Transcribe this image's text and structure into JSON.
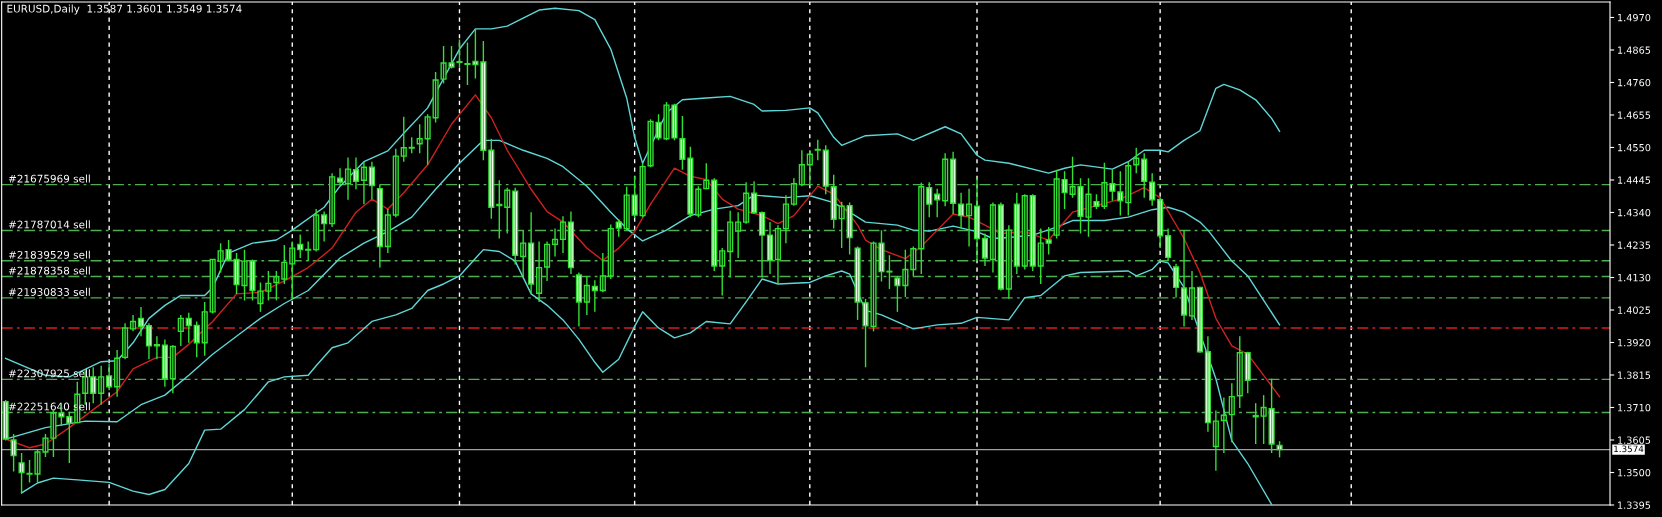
{
  "chart_data": {
    "type": "candlestick",
    "title": "EURUSD,Daily  1.3587 1.3601 1.3549 1.3574",
    "categories": [
      null,
      null,
      null,
      null,
      null,
      null,
      null,
      null,
      null,
      null,
      null,
      null,
      null,
      null,
      null,
      null,
      null,
      null,
      null,
      null,
      null,
      null,
      null,
      null,
      null,
      null,
      null,
      null,
      null,
      null,
      null,
      null,
      null,
      null,
      null,
      null,
      null,
      null,
      null,
      null,
      null,
      null,
      null,
      null,
      null,
      null,
      null,
      null,
      null,
      null,
      null,
      null,
      null,
      null,
      null,
      null,
      null,
      null,
      null,
      null,
      null,
      null,
      null,
      null,
      null,
      null,
      null,
      null,
      null,
      null,
      null,
      null,
      null,
      null,
      null,
      null,
      null,
      null,
      null,
      null,
      null,
      null,
      null,
      null,
      null,
      null,
      null,
      null,
      null,
      null,
      null,
      null,
      null,
      null,
      null,
      null,
      null,
      null,
      null,
      null,
      null,
      null,
      null,
      null,
      null,
      null,
      null,
      null,
      null,
      null,
      null,
      null,
      null,
      null,
      null,
      null,
      null,
      null,
      null,
      null,
      null,
      null,
      null,
      null,
      null,
      null,
      null,
      null,
      null,
      null,
      null,
      null,
      null,
      null,
      null,
      null,
      null,
      null,
      null,
      null,
      null,
      null,
      null,
      null,
      null,
      null,
      null,
      null,
      null,
      null,
      null,
      null,
      null,
      null,
      null,
      null,
      null,
      null,
      null,
      null,
      null,
      null,
      null,
      null,
      null,
      null,
      null,
      null,
      null,
      null,
      null,
      null,
      null,
      null,
      null,
      null,
      null,
      null,
      null,
      null,
      null,
      null,
      null,
      null,
      null,
      null,
      null,
      null,
      null,
      null,
      null,
      null,
      null,
      null,
      null,
      null,
      null,
      null,
      null,
      null,
      null,
      null
    ],
    "ylim": [
      1.3395,
      1.502
    ],
    "yticks": [
      {
        "value": 1.497,
        "label": "1.4970"
      },
      {
        "value": 1.4865,
        "label": "1.4865"
      },
      {
        "value": 1.476,
        "label": "1.4760"
      },
      {
        "value": 1.4655,
        "label": "1.4655"
      },
      {
        "value": 1.455,
        "label": "1.4550"
      },
      {
        "value": 1.4445,
        "label": "1.4445"
      },
      {
        "value": 1.434,
        "label": "1.4340"
      },
      {
        "value": 1.4235,
        "label": "1.4235"
      },
      {
        "value": 1.413,
        "label": "1.4130"
      },
      {
        "value": 1.4025,
        "label": "1.4025"
      },
      {
        "value": 1.392,
        "label": "1.3920"
      },
      {
        "value": 1.3815,
        "label": "1.3815"
      },
      {
        "value": 1.371,
        "label": "1.3710"
      },
      {
        "value": 1.3605,
        "label": "1.3605"
      },
      {
        "value": 1.35,
        "label": "1.3500"
      },
      {
        "value": 1.3395,
        "label": "1.3395"
      }
    ],
    "tick_labels": "y",
    "legend": false,
    "series": [
      {
        "type": "line",
        "color": "#5fd7d7",
        "values": [
          1.3869,
          null,
          null,
          null,
          null,
          1.3814,
          null,
          null,
          1.3809,
          null,
          null,
          null,
          1.3858,
          null,
          1.3861,
          null,
          1.3919,
          null,
          1.3998,
          null,
          1.404,
          null,
          1.4072,
          null,
          null,
          1.4072,
          1.4098,
          null,
          1.4209,
          null,
          null,
          1.4241,
          null,
          null,
          1.4251,
          null,
          1.4283,
          null,
          null,
          null,
          1.4357,
          null,
          1.4425,
          null,
          null,
          1.4504,
          null,
          null,
          1.4539,
          null,
          1.4596,
          null,
          null,
          1.4678,
          null,
          null,
          null,
          1.4868,
          null,
          1.4933,
          null,
          1.4933,
          null,
          1.4942,
          null,
          1.4968,
          null,
          1.4994,
          null,
          1.5,
          null,
          null,
          1.4992,
          null,
          1.4963,
          null,
          1.4868,
          null,
          1.471,
          1.4583,
          1.4499,
          null,
          null,
          1.4662,
          null,
          1.4704,
          null,
          null,
          1.471,
          null,
          null,
          1.4715,
          null,
          null,
          1.4689,
          1.4668,
          null,
          null,
          1.467,
          null,
          null,
          1.4678,
          1.4662,
          null,
          1.4583,
          1.4557,
          null,
          null,
          1.4588,
          null,
          null,
          null,
          1.4594,
          null,
          1.4573,
          null,
          null,
          null,
          1.4617,
          null,
          1.4594,
          null,
          1.4525,
          1.4509,
          null,
          null,
          1.4499,
          null,
          null,
          null,
          null,
          1.4467,
          null,
          1.4483,
          null,
          1.4494,
          null,
          null,
          null,
          1.448,
          null,
          1.4504,
          null,
          1.4541,
          null,
          1.4541,
          1.4536,
          null,
          1.4573,
          null,
          1.4604,
          null,
          1.4741,
          1.4754,
          null,
          1.4736,
          null,
          1.4704,
          null,
          1.4644,
          1.4602,
          null,
          null,
          null,
          null,
          null,
          null,
          null,
          null,
          null,
          null,
          null,
          null,
          null,
          null,
          null,
          null,
          null,
          null,
          null,
          null,
          null,
          null,
          null,
          null,
          null,
          null,
          null,
          null,
          null,
          null,
          null,
          null,
          null,
          null,
          null,
          null,
          null,
          null,
          null,
          null,
          null
        ]
      },
      {
        "type": "line",
        "color": "#5fd7d7",
        "values": [
          1.3608,
          null,
          null,
          null,
          null,
          1.3645,
          null,
          null,
          null,
          null,
          1.3666,
          null,
          null,
          null,
          1.3664,
          null,
          null,
          1.3719,
          null,
          null,
          1.375,
          null,
          null,
          1.3814,
          null,
          null,
          1.3882,
          null,
          null,
          1.394,
          null,
          null,
          1.3998,
          null,
          null,
          1.4046,
          null,
          null,
          1.4088,
          null,
          null,
          null,
          1.4193,
          null,
          null,
          1.4241,
          null,
          null,
          1.4278,
          null,
          null,
          1.4325,
          null,
          null,
          1.4415,
          null,
          null,
          1.4499,
          null,
          null,
          1.4573,
          null,
          1.4573,
          null,
          null,
          1.4541,
          null,
          null,
          1.4515,
          null,
          1.4488,
          null,
          null,
          1.4425,
          null,
          null,
          1.4341,
          null,
          1.4288,
          null,
          1.4248,
          null,
          null,
          1.4283,
          null,
          null,
          1.433,
          null,
          null,
          1.4351,
          null,
          null,
          1.4362,
          null,
          1.4396,
          null,
          null,
          null,
          1.4388,
          null,
          null,
          1.4394,
          null,
          null,
          1.4372,
          null,
          1.4341,
          null,
          1.4309,
          null,
          null,
          null,
          1.4299,
          null,
          1.4283,
          null,
          1.428,
          null,
          null,
          1.4296,
          null,
          null,
          1.4278,
          null,
          1.4256,
          null,
          1.4259,
          null,
          null,
          1.4267,
          null,
          null,
          1.4293,
          null,
          1.4314,
          null,
          null,
          null,
          1.4314,
          null,
          null,
          1.4325,
          null,
          null,
          1.4349,
          null,
          1.4357,
          null,
          1.4341,
          null,
          1.4309,
          1.4283,
          null,
          null,
          1.4183,
          null,
          1.4135,
          null,
          1.4056,
          null,
          1.3977,
          null,
          null,
          null,
          null,
          null,
          null,
          null,
          null,
          null,
          null,
          null,
          null,
          null,
          null,
          null,
          null,
          null,
          null,
          null,
          null,
          null,
          null,
          null,
          null,
          null,
          null,
          null,
          null,
          null,
          null,
          null,
          null,
          null,
          null,
          null,
          null,
          null,
          null,
          null,
          null,
          null
        ]
      },
      {
        "type": "line",
        "color": "#5fd7d7",
        "values": [
          null,
          null,
          1.3434,
          null,
          1.3466,
          null,
          1.3482,
          null,
          null,
          1.3476,
          null,
          null,
          null,
          1.3468,
          null,
          null,
          1.344,
          null,
          1.3429,
          null,
          1.3445,
          null,
          null,
          1.3529,
          null,
          1.3637,
          null,
          1.364,
          null,
          null,
          1.3703,
          null,
          null,
          1.3793,
          null,
          1.3809,
          null,
          null,
          1.3814,
          1.3845,
          null,
          1.3903,
          null,
          1.3919,
          null,
          null,
          1.3988,
          null,
          null,
          1.4009,
          null,
          1.403,
          null,
          1.4088,
          null,
          1.4109,
          null,
          1.4135,
          null,
          null,
          1.422,
          null,
          1.4214,
          null,
          1.4183,
          null,
          1.4077,
          null,
          1.404,
          null,
          1.3993,
          null,
          1.393,
          null,
          1.3856,
          1.3824,
          null,
          1.3866,
          null,
          1.3972,
          1.4019,
          null,
          1.3967,
          null,
          1.3935,
          null,
          1.3951,
          null,
          1.3988,
          null,
          null,
          1.398,
          null,
          1.4051,
          null,
          1.4125,
          null,
          1.4109,
          null,
          null,
          null,
          1.4114,
          null,
          1.4135,
          null,
          1.4151,
          1.4141,
          null,
          1.4024,
          null,
          1.4009,
          null,
          null,
          null,
          1.3964,
          null,
          null,
          1.3977,
          null,
          null,
          1.3982,
          null,
          1.4001,
          null,
          null,
          null,
          1.3993,
          null,
          1.4065,
          null,
          1.4072,
          null,
          null,
          1.4135,
          null,
          1.4146,
          null,
          null,
          null,
          null,
          null,
          1.4151,
          1.4135,
          null,
          1.4156,
          1.4183,
          1.4177,
          null,
          1.4098,
          null,
          null,
          null,
          1.3803,
          null,
          1.3603,
          null,
          1.3529,
          null,
          null,
          1.3397,
          null,
          null,
          null,
          null,
          null,
          null,
          null,
          null,
          null,
          null,
          null,
          null,
          null,
          null,
          null,
          null,
          null,
          null,
          null,
          null,
          null,
          null,
          null,
          null,
          null,
          null,
          null,
          null,
          null,
          null,
          null,
          null,
          null,
          null,
          null,
          null,
          null,
          null,
          null,
          null,
          null,
          null
        ]
      },
      {
        "type": "line",
        "color": "#d02020",
        "values": [
          1.3608,
          null,
          null,
          1.358,
          null,
          1.3592,
          null,
          null,
          1.3645,
          null,
          null,
          1.3703,
          null,
          null,
          1.3761,
          null,
          1.3835,
          null,
          null,
          1.3872,
          null,
          1.3872,
          null,
          1.3914,
          null,
          null,
          1.3988,
          null,
          null,
          1.4077,
          null,
          null,
          1.4082,
          null,
          null,
          1.4119,
          null,
          null,
          1.4162,
          null,
          null,
          1.4225,
          null,
          null,
          1.4341,
          null,
          1.4383,
          null,
          1.4351,
          null,
          1.4404,
          null,
          null,
          1.4494,
          null,
          null,
          1.4625,
          null,
          null,
          1.472,
          null,
          1.4646,
          null,
          1.4541,
          null,
          null,
          1.4415,
          null,
          1.4343,
          null,
          1.4309,
          null,
          null,
          1.4225,
          null,
          1.4185,
          null,
          1.4225,
          null,
          1.4278,
          null,
          1.4367,
          null,
          null,
          1.4483,
          null,
          1.4457,
          null,
          1.4446,
          null,
          1.4383,
          null,
          1.4351,
          null,
          null,
          1.433,
          null,
          1.4304,
          null,
          1.433,
          null,
          null,
          1.4425,
          null,
          1.4399,
          null,
          null,
          1.4299,
          1.4251,
          null,
          1.422,
          null,
          null,
          1.4191,
          null,
          1.423,
          null,
          1.4283,
          null,
          1.4335,
          null,
          1.4325,
          null,
          1.4299,
          null,
          1.4272,
          null,
          null,
          1.4278,
          null,
          null,
          1.4251,
          null,
          null,
          1.4341,
          null,
          null,
          1.4362,
          null,
          null,
          1.4383,
          null,
          null,
          1.442,
          null,
          1.4388,
          null,
          null,
          1.4256,
          null,
          1.4146,
          null,
          1.3998,
          null,
          1.3909,
          null,
          1.3882,
          null,
          1.3814,
          null,
          1.3745,
          null,
          null,
          null,
          null,
          null,
          null,
          null,
          null,
          null,
          null,
          null,
          null,
          null,
          null,
          null,
          null,
          null,
          null,
          null,
          null,
          null,
          null,
          null,
          null,
          null,
          null,
          null,
          null,
          null,
          null,
          null,
          null,
          null,
          null,
          null,
          null,
          null,
          null,
          null,
          null,
          null
        ]
      },
      {
        "color": "#32e032",
        "ohlc": [
          [
            1.3729,
            1.3734,
            1.3603,
            1.3608
          ],
          [
            1.3605,
            1.3624,
            1.3503,
            1.3555
          ],
          [
            1.3531,
            1.3563,
            1.3434,
            1.35
          ],
          [
            1.3495,
            1.354,
            1.3468,
            1.3497
          ],
          [
            1.3495,
            1.3573,
            1.3468,
            1.3566
          ],
          [
            1.3566,
            1.3624,
            1.355,
            1.3611
          ],
          [
            1.3611,
            1.3703,
            1.355,
            1.3692
          ],
          [
            1.3692,
            1.3721,
            1.365,
            1.368
          ],
          [
            1.368,
            1.3696,
            1.3531,
            1.3659
          ],
          [
            1.3661,
            1.3793,
            1.3659,
            1.3753
          ],
          [
            1.3756,
            1.383,
            1.3719,
            1.3809
          ],
          [
            1.3809,
            1.384,
            1.3724,
            1.3756
          ],
          [
            1.3756,
            1.3845,
            1.3719,
            1.3809
          ],
          [
            1.3812,
            1.3851,
            1.3766,
            1.3777
          ],
          [
            1.3777,
            1.3896,
            1.3745,
            1.3869
          ],
          [
            1.3872,
            1.3982,
            1.3866,
            1.3967
          ],
          [
            1.3964,
            1.4009,
            1.3956,
            1.3988
          ],
          [
            1.3998,
            1.4035,
            1.394,
            1.3972
          ],
          [
            1.3974,
            1.3982,
            1.3866,
            1.3909
          ],
          [
            1.3913,
            1.394,
            1.3866,
            1.3909
          ],
          [
            1.3911,
            1.393,
            1.3777,
            1.3803
          ],
          [
            1.3803,
            1.3911,
            1.3756,
            1.3907
          ],
          [
            1.3956,
            1.4009,
            1.3909,
            1.3998
          ],
          [
            1.3998,
            1.4016,
            1.3919,
            1.3975
          ],
          [
            1.3975,
            1.3988,
            1.3872,
            1.3919
          ],
          [
            1.3919,
            1.4051,
            1.3877,
            1.4019
          ],
          [
            1.4019,
            1.4188,
            1.4014,
            1.4188
          ],
          [
            1.4183,
            1.4241,
            1.4146,
            1.4216
          ],
          [
            1.422,
            1.4251,
            1.4183,
            1.4188
          ],
          [
            1.4188,
            1.4209,
            1.4077,
            1.4107
          ],
          [
            1.4104,
            1.422,
            1.4056,
            1.4183
          ],
          [
            1.4183,
            1.4188,
            1.4056,
            1.4088
          ],
          [
            1.4046,
            1.4114,
            1.4019,
            1.4086
          ],
          [
            1.4086,
            1.4151,
            1.4056,
            1.4111
          ],
          [
            1.4114,
            1.4151,
            1.4056,
            1.4132
          ],
          [
            1.4125,
            1.4235,
            1.4109,
            1.4179
          ],
          [
            1.4174,
            1.4246,
            1.4061,
            1.4225
          ],
          [
            1.4237,
            1.4269,
            1.4193,
            1.422
          ],
          [
            1.4219,
            1.4246,
            1.4183,
            1.4221
          ],
          [
            1.422,
            1.4351,
            1.4214,
            1.4332
          ],
          [
            1.4332,
            1.4343,
            1.4246,
            1.4304
          ],
          [
            1.4304,
            1.4467,
            1.4293,
            1.4455
          ],
          [
            1.4451,
            1.4483,
            1.4427,
            1.4438
          ],
          [
            1.4433,
            1.4518,
            1.4381,
            1.448
          ],
          [
            1.4478,
            1.4518,
            1.4415,
            1.4441
          ],
          [
            1.4444,
            1.4504,
            1.4367,
            1.4486
          ],
          [
            1.4486,
            1.4504,
            1.4383,
            1.4427
          ],
          [
            1.4417,
            1.443,
            1.4162,
            1.423
          ],
          [
            1.423,
            1.4351,
            1.4209,
            1.4332
          ],
          [
            1.4332,
            1.4546,
            1.4325,
            1.4522
          ],
          [
            1.4522,
            1.4649,
            1.4504,
            1.4549
          ],
          [
            1.4548,
            1.4583,
            1.4531,
            1.455
          ],
          [
            1.4562,
            1.4625,
            1.4531,
            1.4578
          ],
          [
            1.4578,
            1.4657,
            1.4494,
            1.4649
          ],
          [
            1.4646,
            1.4794,
            1.4631,
            1.4768
          ],
          [
            1.4771,
            1.4878,
            1.4757,
            1.4823
          ],
          [
            1.4823,
            1.4878,
            1.4805,
            1.481
          ],
          [
            1.4825,
            1.4899,
            1.481,
            1.4827
          ],
          [
            1.4819,
            1.4889,
            1.4752,
            1.4821
          ],
          [
            1.4828,
            1.4933,
            1.4773,
            1.4818
          ],
          [
            1.4826,
            1.4894,
            1.4509,
            1.4541
          ],
          [
            1.4541,
            1.4578,
            1.432,
            1.4357
          ],
          [
            1.4366,
            1.4444,
            1.4256,
            1.4362
          ],
          [
            1.4357,
            1.442,
            1.4272,
            1.4412
          ],
          [
            1.4409,
            1.442,
            1.4172,
            1.4202
          ],
          [
            1.4198,
            1.4283,
            1.413,
            1.4241
          ],
          [
            1.4241,
            1.4341,
            1.4077,
            1.4109
          ],
          [
            1.4079,
            1.4246,
            1.4051,
            1.4162
          ],
          [
            1.4164,
            1.4246,
            1.4119,
            1.4237
          ],
          [
            1.4237,
            1.4288,
            1.4198,
            1.4253
          ],
          [
            1.4253,
            1.4328,
            1.4209,
            1.4309
          ],
          [
            1.4309,
            1.4343,
            1.4141,
            1.4162
          ],
          [
            1.4138,
            1.4146,
            1.3972,
            1.4051
          ],
          [
            1.4051,
            1.4135,
            1.4009,
            1.4104
          ],
          [
            1.4101,
            1.4121,
            1.4019,
            1.4088
          ],
          [
            1.4088,
            1.4209,
            1.4082,
            1.4135
          ],
          [
            1.4135,
            1.4301,
            1.4125,
            1.4288
          ],
          [
            1.4309,
            1.4318,
            1.4262,
            1.429
          ],
          [
            1.4288,
            1.4423,
            1.4283,
            1.4396
          ],
          [
            1.4396,
            1.4457,
            1.4322,
            1.4332
          ],
          [
            1.433,
            1.4499,
            1.4325,
            1.4488
          ],
          [
            1.4491,
            1.4641,
            1.4486,
            1.4634
          ],
          [
            1.4631,
            1.4657,
            1.4573,
            1.4581
          ],
          [
            1.4578,
            1.4697,
            1.4573,
            1.4687
          ],
          [
            1.4687,
            1.4691,
            1.4573,
            1.4581
          ],
          [
            1.4578,
            1.4652,
            1.4478,
            1.4512
          ],
          [
            1.4515,
            1.4552,
            1.4325,
            1.4335
          ],
          [
            1.4332,
            1.4425,
            1.4325,
            1.4415
          ],
          [
            1.4417,
            1.4499,
            1.4415,
            1.4444
          ],
          [
            1.4444,
            1.4451,
            1.4151,
            1.4167
          ],
          [
            1.4167,
            1.4225,
            1.4072,
            1.4216
          ],
          [
            1.4214,
            1.4346,
            1.413,
            1.4309
          ],
          [
            1.428,
            1.4341,
            1.4193,
            1.4309
          ],
          [
            1.4309,
            1.4438,
            1.4304,
            1.4402
          ],
          [
            1.4402,
            1.4441,
            1.4335,
            1.4339
          ],
          [
            1.4339,
            1.4343,
            1.413,
            1.4267
          ],
          [
            1.4267,
            1.4309,
            1.4141,
            1.4185
          ],
          [
            1.4188,
            1.4299,
            1.4109,
            1.4288
          ],
          [
            1.4288,
            1.4396,
            1.4241,
            1.4367
          ],
          [
            1.4367,
            1.4451,
            1.4362,
            1.4433
          ],
          [
            1.443,
            1.4541,
            1.4425,
            1.4494
          ],
          [
            1.4494,
            1.4541,
            1.443,
            1.4528
          ],
          [
            1.4542,
            1.4575,
            1.4509,
            1.4544
          ],
          [
            1.4541,
            1.4557,
            1.4399,
            1.4425
          ],
          [
            1.4423,
            1.4462,
            1.4288,
            1.4318
          ],
          [
            1.432,
            1.4375,
            1.4225,
            1.436
          ],
          [
            1.4362,
            1.4372,
            1.4204,
            1.4259
          ],
          [
            1.4225,
            1.423,
            1.3993,
            1.4051
          ],
          [
            1.4048,
            1.4061,
            1.384,
            1.3974
          ],
          [
            1.3972,
            1.4246,
            1.3956,
            1.4241
          ],
          [
            1.4241,
            1.4283,
            1.4117,
            1.4149
          ],
          [
            1.415,
            1.4202,
            1.4093,
            1.4148
          ],
          [
            1.4128,
            1.4135,
            1.4019,
            1.4104
          ],
          [
            1.4104,
            1.422,
            1.4067,
            1.4156
          ],
          [
            1.4156,
            1.423,
            1.4135,
            1.4223
          ],
          [
            1.4223,
            1.4436,
            1.4141,
            1.4423
          ],
          [
            1.442,
            1.4438,
            1.4325,
            1.4367
          ],
          [
            1.4399,
            1.4417,
            1.4325,
            1.4381
          ],
          [
            1.4378,
            1.4531,
            1.436,
            1.4512
          ],
          [
            1.4512,
            1.4536,
            1.4335,
            1.437
          ],
          [
            1.4367,
            1.4404,
            1.4288,
            1.433
          ],
          [
            1.433,
            1.4417,
            1.423,
            1.4367
          ],
          [
            1.436,
            1.4451,
            1.4183,
            1.4256
          ],
          [
            1.4256,
            1.4272,
            1.4167,
            1.4193
          ],
          [
            1.4188,
            1.4372,
            1.4146,
            1.4364
          ],
          [
            1.4364,
            1.4372,
            1.4088,
            1.4093
          ],
          [
            1.4093,
            1.4299,
            1.4061,
            1.4283
          ],
          [
            1.4367,
            1.4404,
            1.4141,
            1.4167
          ],
          [
            1.4167,
            1.4399,
            1.4156,
            1.4394
          ],
          [
            1.4394,
            1.4399,
            1.4151,
            1.4167
          ],
          [
            1.4167,
            1.4288,
            1.4109,
            1.4241
          ],
          [
            1.4251,
            1.4293,
            1.4204,
            1.4241
          ],
          [
            1.4267,
            1.4478,
            1.4256,
            1.4448
          ],
          [
            1.4446,
            1.4473,
            1.4351,
            1.4404
          ],
          [
            1.4399,
            1.452,
            1.4388,
            1.4423
          ],
          [
            1.4423,
            1.4451,
            1.4272,
            1.4328
          ],
          [
            1.4325,
            1.4451,
            1.4262,
            1.4399
          ],
          [
            1.4375,
            1.4399,
            1.4351,
            1.436
          ],
          [
            1.436,
            1.4501,
            1.4351,
            1.4436
          ],
          [
            1.4433,
            1.4478,
            1.4378,
            1.4409
          ],
          [
            1.4406,
            1.4473,
            1.433,
            1.4378
          ],
          [
            1.4372,
            1.4504,
            1.433,
            1.4491
          ],
          [
            1.4494,
            1.4549,
            1.4467,
            1.4515
          ],
          [
            1.4512,
            1.4531,
            1.4388,
            1.4441
          ],
          [
            1.4438,
            1.4467,
            1.4362,
            1.4381
          ],
          [
            1.4381,
            1.4388,
            1.4225,
            1.4265
          ],
          [
            1.4265,
            1.4288,
            1.4183,
            1.4195
          ],
          [
            1.4164,
            1.4174,
            1.4065,
            1.4098
          ],
          [
            1.4096,
            1.4283,
            1.3972,
            1.4009
          ],
          [
            1.4006,
            1.4151,
            1.3993,
            1.4096
          ],
          [
            1.4098,
            1.41,
            1.3887,
            1.389
          ],
          [
            1.389,
            1.394,
            1.3632,
            1.3661
          ],
          [
            1.3584,
            1.37,
            1.3506,
            1.3666
          ],
          [
            1.3668,
            1.3742,
            1.3563,
            1.3685
          ],
          [
            1.3687,
            1.3788,
            1.3598,
            1.3745
          ],
          [
            1.3748,
            1.394,
            1.3708,
            1.3887
          ],
          [
            1.3887,
            1.389,
            1.3756,
            1.3798
          ],
          [
            1.3684,
            1.3724,
            1.3592,
            1.368
          ],
          [
            1.3682,
            1.375,
            1.3592,
            1.371
          ],
          [
            1.3706,
            1.3803,
            1.3563,
            1.3592
          ],
          [
            1.3587,
            1.3601,
            1.3549,
            1.3574
          ],
          null,
          null,
          null,
          null,
          null,
          null,
          null,
          null,
          null,
          null,
          null,
          null,
          null,
          null,
          null,
          null,
          null,
          null,
          null,
          null,
          null,
          null,
          null,
          null,
          null,
          null,
          null,
          null,
          null,
          null,
          null,
          null,
          null,
          null,
          null,
          null,
          null,
          null,
          null,
          null,
          null
        ]
      }
    ],
    "ref_lines": [
      {
        "axis": "y",
        "value": 1.443,
        "label": "#21675969 sell",
        "color": "#4fae4f",
        "line_style": "dashed"
      },
      {
        "axis": "y",
        "value": 1.4282,
        "label": "#21787014 sell",
        "color": "#4fae4f",
        "line_style": "dashed"
      },
      {
        "axis": "y",
        "value": 1.4184,
        "label": "#21839529 sell",
        "color": "#4fae4f",
        "line_style": "dashed"
      },
      {
        "axis": "y",
        "value": 1.4133,
        "label": "#21878358 sell",
        "color": "#4fae4f",
        "line_style": "dashed"
      },
      {
        "axis": "y",
        "value": 1.4064,
        "label": "#21930833 sell",
        "color": "#4fae4f",
        "line_style": "dashed"
      },
      {
        "axis": "y",
        "value": 1.3967,
        "color": "#d02020",
        "line_style": "dashed"
      },
      {
        "axis": "y",
        "value": 1.3801,
        "label": "#22307925 sell",
        "color": "#4fae4f",
        "line_style": "dashed"
      },
      {
        "axis": "y",
        "value": 1.3694,
        "label": "#22251640 sell",
        "color": "#4fae4f",
        "line_style": "dashed"
      },
      {
        "axis": "y",
        "value": 1.3574,
        "label": "1.3574",
        "color": "#a0a0a0",
        "line_style": "solid"
      }
    ]
  }
}
